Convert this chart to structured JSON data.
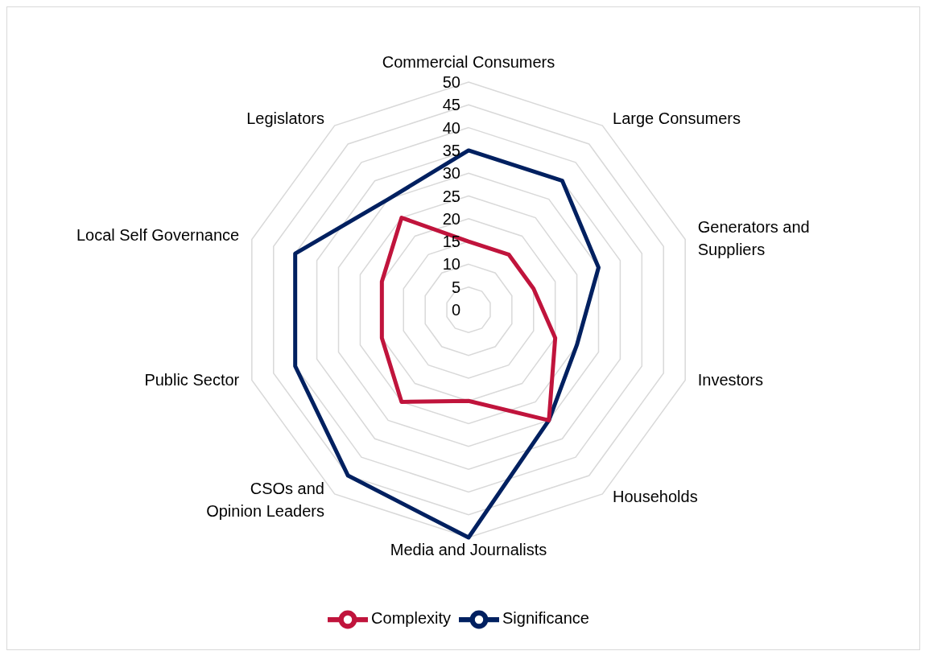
{
  "chart_data": {
    "type": "radar",
    "categories": [
      "Commercial Consumers",
      "Large Consumers",
      "Generators and Suppliers",
      "Investors",
      "Households",
      "Media and Journalists",
      "CSOs and Opinion Leaders",
      "Public Sector",
      "Local Self Governance",
      "Legislators"
    ],
    "series": [
      {
        "name": "Significance",
        "color": "#002060",
        "values": [
          35,
          35,
          30,
          25,
          30,
          50,
          45,
          40,
          40,
          30
        ]
      },
      {
        "name": "Complexity",
        "color": "#c0143c",
        "values": [
          15,
          15,
          15,
          20,
          30,
          20,
          25,
          20,
          20,
          25
        ]
      }
    ],
    "ylim": [
      0,
      50
    ],
    "yticks": [
      0,
      5,
      10,
      15,
      20,
      25,
      30,
      35,
      40,
      45,
      50
    ],
    "grid": true,
    "legend": "bottom",
    "marker": "none",
    "line_style": "solid"
  }
}
